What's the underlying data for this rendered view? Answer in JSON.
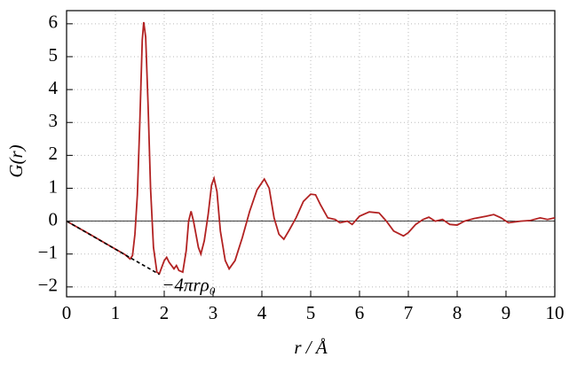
{
  "chart_data": {
    "type": "line",
    "x_label": "r / Å",
    "y_label": "G(r)",
    "annotation": "−4πrρ₀",
    "xlim": [
      0,
      10
    ],
    "ylim": [
      -2.3,
      6.4
    ],
    "xticks": [
      0,
      1,
      2,
      3,
      4,
      5,
      6,
      7,
      8,
      9,
      10
    ],
    "yticks": [
      {
        "value": -2,
        "label": "−2"
      },
      {
        "value": -1,
        "label": "−1"
      },
      0,
      1,
      2,
      3,
      4,
      5,
      6
    ],
    "grid": true,
    "series": [
      {
        "color": "#b22222",
        "dash": false,
        "x": [
          0,
          0.5,
          1.0,
          1.2,
          1.3,
          1.35,
          1.4,
          1.45,
          1.5,
          1.55,
          1.58,
          1.62,
          1.67,
          1.72,
          1.78,
          1.85,
          1.9,
          1.95,
          2.0,
          2.05,
          2.1,
          2.2,
          2.25,
          2.3,
          2.38,
          2.45,
          2.5,
          2.55,
          2.6,
          2.7,
          2.75,
          2.82,
          2.9,
          2.97,
          3.02,
          3.08,
          3.15,
          3.25,
          3.33,
          3.45,
          3.6,
          3.75,
          3.9,
          4.05,
          4.15,
          4.25,
          4.35,
          4.45,
          4.55,
          4.7,
          4.85,
          5.0,
          5.1,
          5.2,
          5.35,
          5.5,
          5.6,
          5.75,
          5.85,
          6.0,
          6.2,
          6.4,
          6.55,
          6.7,
          6.9,
          7.0,
          7.15,
          7.3,
          7.42,
          7.55,
          7.7,
          7.85,
          8.0,
          8.15,
          8.35,
          8.6,
          8.75,
          8.9,
          9.05,
          9.3,
          9.5,
          9.7,
          9.85,
          10.0
        ],
        "values": [
          0,
          -0.42,
          -0.85,
          -1.02,
          -1.15,
          -1.05,
          -0.4,
          0.8,
          3.0,
          5.5,
          6.05,
          5.6,
          3.5,
          1.0,
          -0.8,
          -1.55,
          -1.6,
          -1.4,
          -1.2,
          -1.1,
          -1.25,
          -1.45,
          -1.35,
          -1.5,
          -1.55,
          -0.9,
          0.0,
          0.3,
          0.0,
          -0.8,
          -1.0,
          -0.6,
          0.2,
          1.1,
          1.3,
          0.9,
          -0.3,
          -1.2,
          -1.45,
          -1.2,
          -0.5,
          0.3,
          0.95,
          1.28,
          1.0,
          0.1,
          -0.4,
          -0.55,
          -0.3,
          0.1,
          0.6,
          0.82,
          0.8,
          0.5,
          0.1,
          0.05,
          -0.05,
          0.0,
          -0.1,
          0.15,
          0.28,
          0.25,
          0.0,
          -0.3,
          -0.45,
          -0.35,
          -0.1,
          0.05,
          0.12,
          0.0,
          0.05,
          -0.1,
          -0.12,
          0.0,
          0.08,
          0.15,
          0.2,
          0.1,
          -0.05,
          0.0,
          0.02,
          0.1,
          0.05,
          0.1
        ]
      },
      {
        "color": "#000000",
        "dash": true,
        "x": [
          0,
          1.9
        ],
        "values": [
          0,
          -1.62
        ]
      }
    ]
  }
}
